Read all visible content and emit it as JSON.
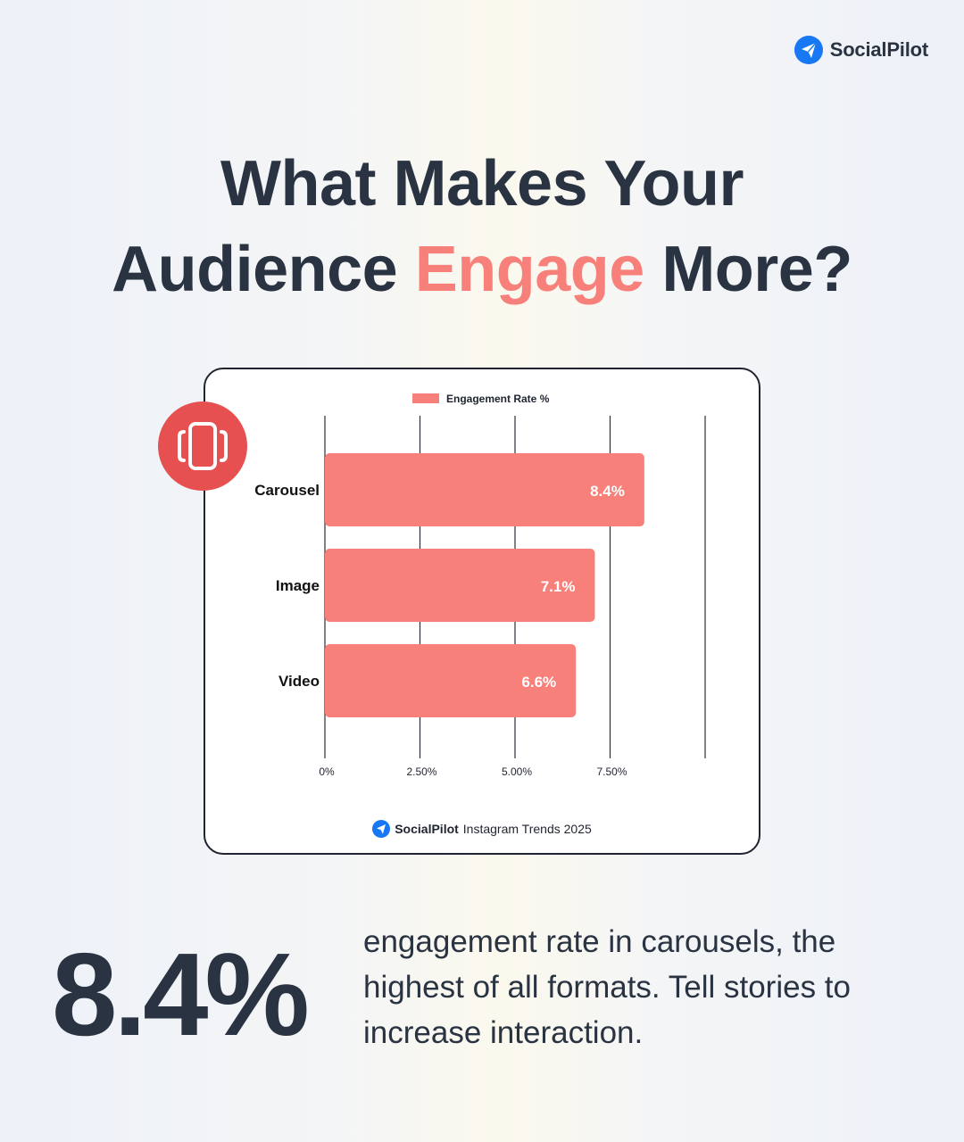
{
  "brand": {
    "name": "SocialPilot",
    "icon": "paper-plane-icon",
    "color": "#1877f2"
  },
  "headline": {
    "line1": "What Makes Your",
    "line2_before": "Audience",
    "line2_accent": "Engage",
    "line2_after": "More?"
  },
  "colors": {
    "accent": "#f8807a",
    "badge": "#e75050",
    "text": "#2a3342"
  },
  "badge_icon": "carousel-icon",
  "chart_data": {
    "type": "bar",
    "orientation": "horizontal",
    "categories": [
      "Carousel",
      "Image",
      "Video"
    ],
    "series": [
      {
        "name": "Engagement Rate %",
        "values": [
          8.4,
          7.1,
          6.6
        ],
        "color": "#f8807a"
      }
    ],
    "data_labels": [
      "8.4%",
      "7.1%",
      "6.6%"
    ],
    "xticks": [
      0,
      2.5,
      5,
      7.5,
      10
    ],
    "xtick_labels": [
      "0%",
      "2.50%",
      "5.00%",
      "7.50%",
      ""
    ],
    "xlim": [
      0,
      10
    ],
    "grid": true,
    "legend": "top-center"
  },
  "card_footer": {
    "brand": "SocialPilot",
    "source": "Instagram Trends 2025"
  },
  "stat": {
    "value": "8.4%",
    "text": "engagement rate in carousels, the highest of all formats. Tell stories to increase interaction."
  }
}
